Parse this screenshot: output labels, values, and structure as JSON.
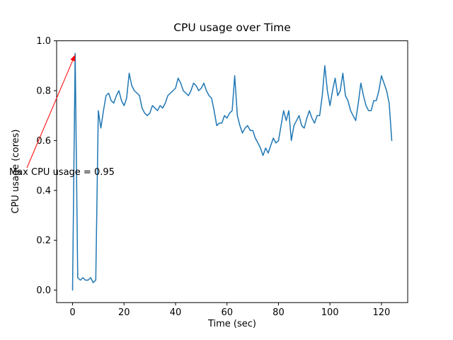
{
  "title": "CPU usage over Time",
  "chart_data": {
    "type": "line",
    "title": "CPU usage over Time",
    "xlabel": "Time (sec)",
    "ylabel": "CPU usage (cores)",
    "xlim": [
      -6.2,
      130.2
    ],
    "ylim": [
      -0.05,
      1.0
    ],
    "x_ticks": [
      0,
      20,
      40,
      60,
      80,
      100,
      120
    ],
    "x_tick_labels": [
      "0",
      "20",
      "40",
      "60",
      "80",
      "100",
      "120"
    ],
    "y_ticks": [
      0.0,
      0.2,
      0.4,
      0.6,
      0.8,
      1.0
    ],
    "y_tick_labels": [
      "0.0",
      "0.2",
      "0.4",
      "0.6",
      "0.8",
      "1.0"
    ],
    "grid": false,
    "legend_position": "none",
    "line_color": "#1f77b4",
    "axis_color": "#000000",
    "series": [
      {
        "name": "cpu_usage",
        "points": [
          [
            0,
            0.0
          ],
          [
            1,
            0.95
          ],
          [
            2,
            0.05
          ],
          [
            3,
            0.04
          ],
          [
            4,
            0.05
          ],
          [
            5,
            0.04
          ],
          [
            6,
            0.04
          ],
          [
            7,
            0.05
          ],
          [
            8,
            0.03
          ],
          [
            9,
            0.04
          ],
          [
            10,
            0.72
          ],
          [
            11,
            0.65
          ],
          [
            12,
            0.72
          ],
          [
            13,
            0.78
          ],
          [
            14,
            0.79
          ],
          [
            15,
            0.76
          ],
          [
            16,
            0.75
          ],
          [
            17,
            0.78
          ],
          [
            18,
            0.8
          ],
          [
            19,
            0.76
          ],
          [
            20,
            0.74
          ],
          [
            21,
            0.77
          ],
          [
            22,
            0.87
          ],
          [
            23,
            0.82
          ],
          [
            24,
            0.8
          ],
          [
            25,
            0.79
          ],
          [
            26,
            0.78
          ],
          [
            27,
            0.73
          ],
          [
            28,
            0.71
          ],
          [
            29,
            0.7
          ],
          [
            30,
            0.71
          ],
          [
            31,
            0.74
          ],
          [
            32,
            0.73
          ],
          [
            33,
            0.72
          ],
          [
            34,
            0.74
          ],
          [
            35,
            0.73
          ],
          [
            36,
            0.75
          ],
          [
            37,
            0.78
          ],
          [
            38,
            0.79
          ],
          [
            39,
            0.8
          ],
          [
            40,
            0.81
          ],
          [
            41,
            0.85
          ],
          [
            42,
            0.83
          ],
          [
            43,
            0.8
          ],
          [
            44,
            0.79
          ],
          [
            45,
            0.78
          ],
          [
            46,
            0.8
          ],
          [
            47,
            0.83
          ],
          [
            48,
            0.82
          ],
          [
            49,
            0.8
          ],
          [
            50,
            0.81
          ],
          [
            51,
            0.83
          ],
          [
            52,
            0.8
          ],
          [
            53,
            0.78
          ],
          [
            54,
            0.77
          ],
          [
            55,
            0.72
          ],
          [
            56,
            0.66
          ],
          [
            57,
            0.67
          ],
          [
            58,
            0.67
          ],
          [
            59,
            0.7
          ],
          [
            60,
            0.69
          ],
          [
            61,
            0.71
          ],
          [
            62,
            0.72
          ],
          [
            63,
            0.86
          ],
          [
            64,
            0.7
          ],
          [
            65,
            0.66
          ],
          [
            66,
            0.63
          ],
          [
            67,
            0.65
          ],
          [
            68,
            0.66
          ],
          [
            69,
            0.64
          ],
          [
            70,
            0.64
          ],
          [
            71,
            0.61
          ],
          [
            72,
            0.59
          ],
          [
            73,
            0.57
          ],
          [
            74,
            0.54
          ],
          [
            75,
            0.57
          ],
          [
            76,
            0.55
          ],
          [
            77,
            0.58
          ],
          [
            78,
            0.61
          ],
          [
            79,
            0.59
          ],
          [
            80,
            0.6
          ],
          [
            81,
            0.66
          ],
          [
            82,
            0.72
          ],
          [
            83,
            0.68
          ],
          [
            84,
            0.72
          ],
          [
            85,
            0.6
          ],
          [
            86,
            0.66
          ],
          [
            87,
            0.68
          ],
          [
            88,
            0.7
          ],
          [
            89,
            0.66
          ],
          [
            90,
            0.65
          ],
          [
            91,
            0.69
          ],
          [
            92,
            0.72
          ],
          [
            93,
            0.69
          ],
          [
            94,
            0.67
          ],
          [
            95,
            0.7
          ],
          [
            96,
            0.7
          ],
          [
            97,
            0.78
          ],
          [
            98,
            0.9
          ],
          [
            99,
            0.8
          ],
          [
            100,
            0.74
          ],
          [
            101,
            0.8
          ],
          [
            102,
            0.85
          ],
          [
            103,
            0.78
          ],
          [
            104,
            0.8
          ],
          [
            105,
            0.87
          ],
          [
            106,
            0.78
          ],
          [
            107,
            0.76
          ],
          [
            108,
            0.72
          ],
          [
            109,
            0.7
          ],
          [
            110,
            0.68
          ],
          [
            111,
            0.75
          ],
          [
            112,
            0.83
          ],
          [
            113,
            0.78
          ],
          [
            114,
            0.74
          ],
          [
            115,
            0.72
          ],
          [
            116,
            0.72
          ],
          [
            117,
            0.76
          ],
          [
            118,
            0.76
          ],
          [
            119,
            0.8
          ],
          [
            120,
            0.86
          ],
          [
            121,
            0.83
          ],
          [
            122,
            0.8
          ],
          [
            123,
            0.75
          ],
          [
            124,
            0.6
          ]
        ]
      }
    ],
    "annotation": {
      "text": "Max CPU usage = 0.95",
      "color": "#ff0000",
      "target": [
        1,
        0.95
      ]
    }
  }
}
